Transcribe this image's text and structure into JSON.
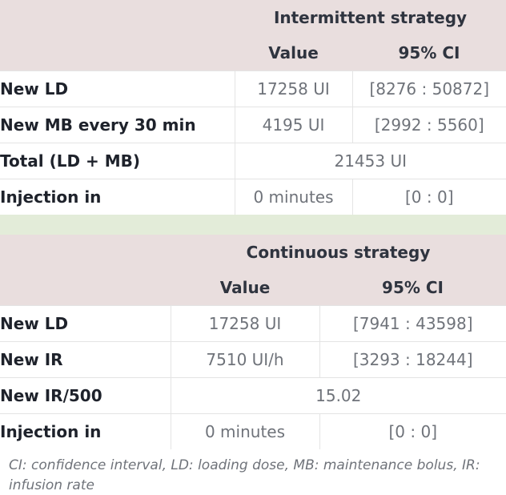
{
  "intermittent": {
    "title": "Intermittent strategy",
    "col_value": "Value",
    "col_ci": "95% CI",
    "rows": [
      {
        "label": "New LD",
        "value": "17258 UI",
        "ci": "[8276 : 50872]"
      },
      {
        "label": "New MB every 30 min",
        "value": "4195 UI",
        "ci": "[2992 : 5560]"
      },
      {
        "label": "Total (LD + MB)",
        "value": "21453 UI"
      },
      {
        "label": "Injection in",
        "value": "0 minutes",
        "ci": "[0 : 0]"
      }
    ]
  },
  "continuous": {
    "title": "Continuous strategy",
    "col_value": "Value",
    "col_ci": "95% CI",
    "rows": [
      {
        "label": "New LD",
        "value": "17258 UI",
        "ci": "[7941 : 43598]"
      },
      {
        "label": "New IR",
        "value": "7510 UI/h",
        "ci": "[3293 : 18244]"
      },
      {
        "label": "New IR/500",
        "value": "15.02"
      },
      {
        "label": "Injection in",
        "value": "0 minutes",
        "ci": "[0 : 0]"
      }
    ]
  },
  "footnote": "CI: confidence interval, LD: loading dose, MB: maintenance bolus, IR: infusion rate",
  "colors": {
    "header_bg": "#e9dede",
    "separator_bg": "#e3ecd9",
    "value_text": "#6f737a",
    "label_text": "#1e222b"
  }
}
